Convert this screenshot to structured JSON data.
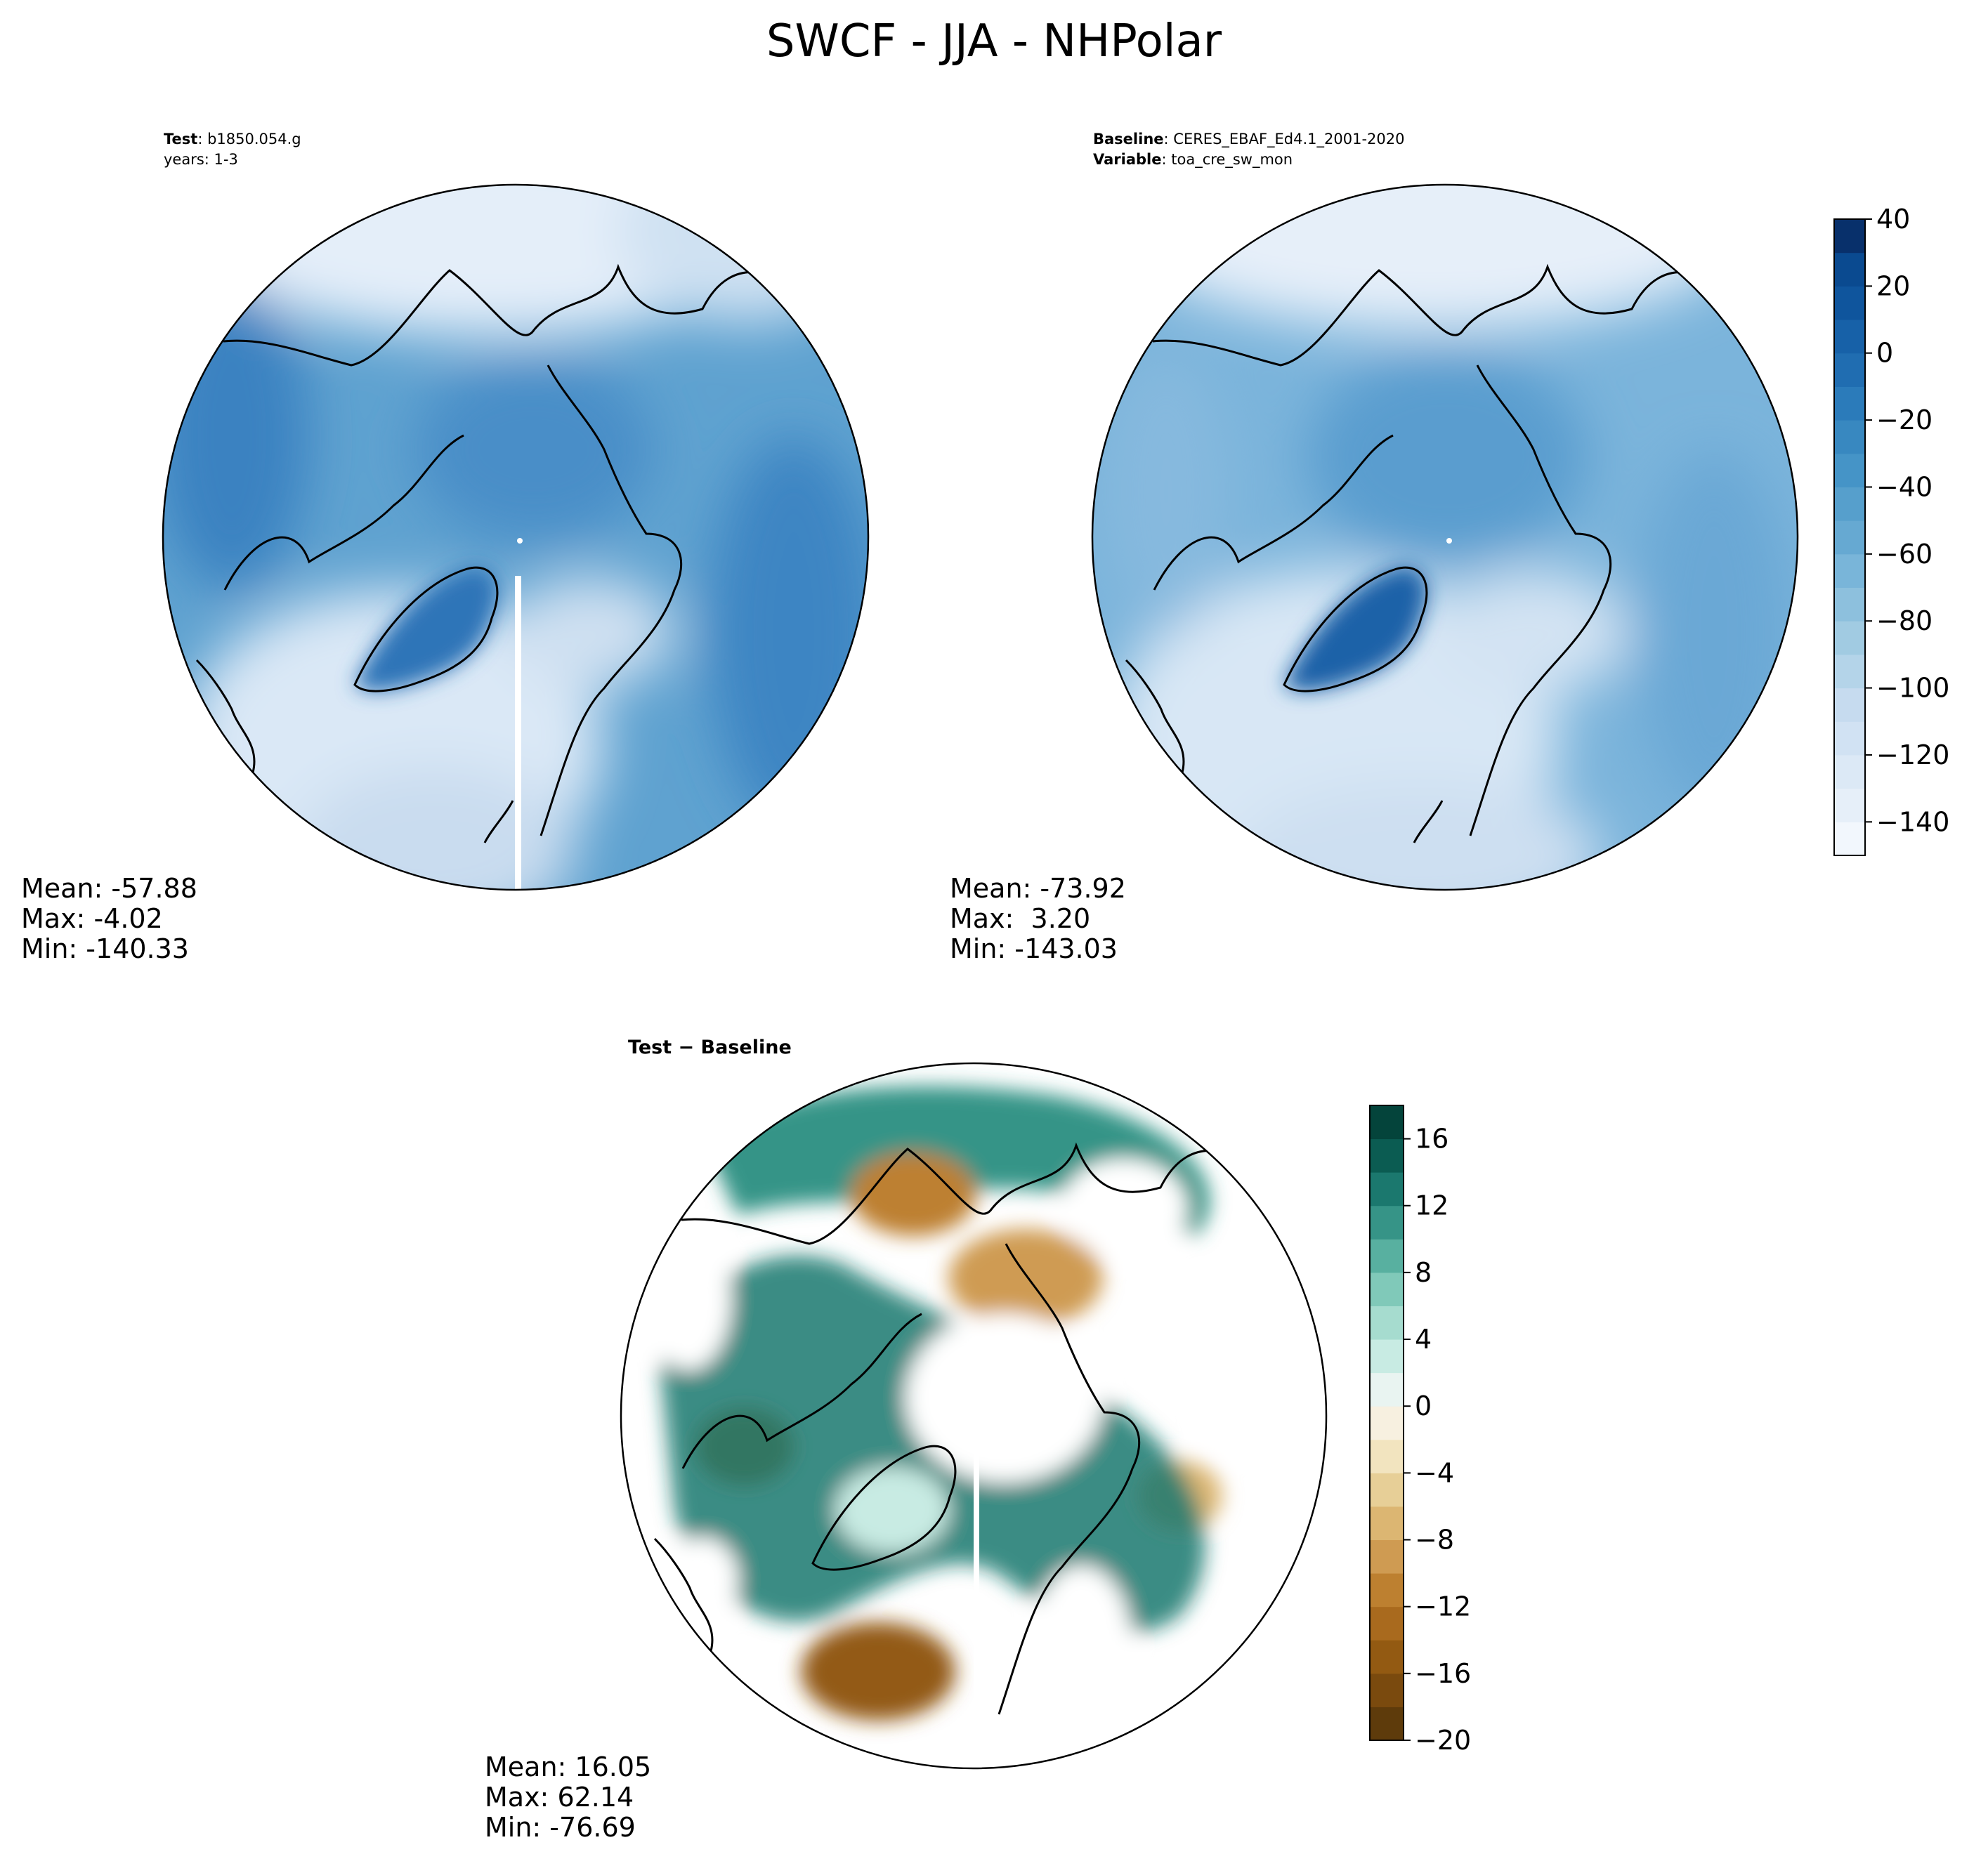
{
  "title": "SWCF - JJA - NHPolar",
  "panels": {
    "test": {
      "header_bold": "Test",
      "header_value": "b1850.054.g",
      "header_line2": "years: 1-3",
      "stats": {
        "mean": "Mean: -57.88",
        "max": "Max: -4.02",
        "min": "Min: -140.33"
      }
    },
    "baseline": {
      "header_bold": "Baseline",
      "header_value": "CERES_EBAF_Ed4.1_2001-2020",
      "header2_bold": "Variable",
      "header2_value": "toa_cre_sw_mon",
      "stats": {
        "mean": "Mean: -73.92",
        "max": "Max:  3.20",
        "min": "Min: -143.03"
      }
    },
    "diff": {
      "header": "Test − Baseline",
      "stats": {
        "mean": "Mean: 16.05",
        "max": "Max: 62.14",
        "min": "Min: -76.69"
      }
    }
  },
  "chart_data": [
    {
      "type": "heatmap",
      "projection": "north polar stereographic",
      "panel": "test",
      "title_lines": [
        "Test: b1850.054.g",
        "years: 1-3"
      ],
      "stats": {
        "mean": -57.88,
        "max": -4.02,
        "min": -140.33
      },
      "colormap": "Blues",
      "colorbar": "shared with baseline"
    },
    {
      "type": "heatmap",
      "projection": "north polar stereographic",
      "panel": "baseline",
      "title_lines": [
        "Baseline: CERES_EBAF_Ed4.1_2001-2020",
        "Variable: toa_cre_sw_mon"
      ],
      "stats": {
        "mean": -73.92,
        "max": 3.2,
        "min": -143.03
      },
      "colormap": "Blues",
      "colorbar": {
        "range": [
          -150,
          40
        ],
        "levels": [
          -150,
          -140,
          -130,
          -120,
          -110,
          -100,
          -90,
          -80,
          -70,
          -60,
          -50,
          -40,
          -30,
          -20,
          -10,
          0,
          10,
          20,
          30,
          40
        ],
        "ticks": [
          40,
          20,
          0,
          -20,
          -40,
          -60,
          -80,
          -100,
          -120,
          -140
        ],
        "tick_labels": [
          "40",
          "20",
          "0",
          "−20",
          "−40",
          "−60",
          "−80",
          "−100",
          "−120",
          "−140"
        ],
        "colors_low_to_high": [
          "#f2f7fd",
          "#e6eff9",
          "#dce9f6",
          "#d1e2f3",
          "#c6dbef",
          "#b4d4e9",
          "#a1cbe2",
          "#8dc0dd",
          "#79b5d9",
          "#66a9d2",
          "#569fcc",
          "#4594c7",
          "#3888c0",
          "#2b7bba",
          "#206db1",
          "#1761a8",
          "#0f559d",
          "#0a4a90",
          "#08306b"
        ]
      }
    },
    {
      "type": "heatmap",
      "projection": "north polar stereographic",
      "panel": "diff",
      "title_lines": [
        "Test − Baseline"
      ],
      "stats": {
        "mean": 16.05,
        "max": 62.14,
        "min": -76.69
      },
      "colormap": "BrBG",
      "colorbar": {
        "range": [
          -20,
          18
        ],
        "levels": [
          -20,
          -18,
          -16,
          -14,
          -12,
          -10,
          -8,
          -6,
          -4,
          -2,
          0,
          2,
          4,
          6,
          8,
          10,
          12,
          14,
          16,
          18
        ],
        "ticks": [
          16,
          12,
          8,
          4,
          0,
          -4,
          -8,
          -12,
          -16,
          -20
        ],
        "tick_labels": [
          "16",
          "12",
          "8",
          "4",
          "0",
          "−4",
          "−8",
          "−12",
          "−16",
          "−20"
        ],
        "colors_low_to_high": [
          "#5e3b0b",
          "#7a4a0e",
          "#935a12",
          "#a96a1e",
          "#bd8030",
          "#cf9b52",
          "#dcb672",
          "#e7cf97",
          "#f2e4bf",
          "#f7f0e0",
          "#e9f4f1",
          "#c8ebe3",
          "#a6dccf",
          "#80c9b9",
          "#58b0a0",
          "#369487",
          "#1b786e",
          "#0b5c52",
          "#04443b"
        ]
      }
    }
  ]
}
